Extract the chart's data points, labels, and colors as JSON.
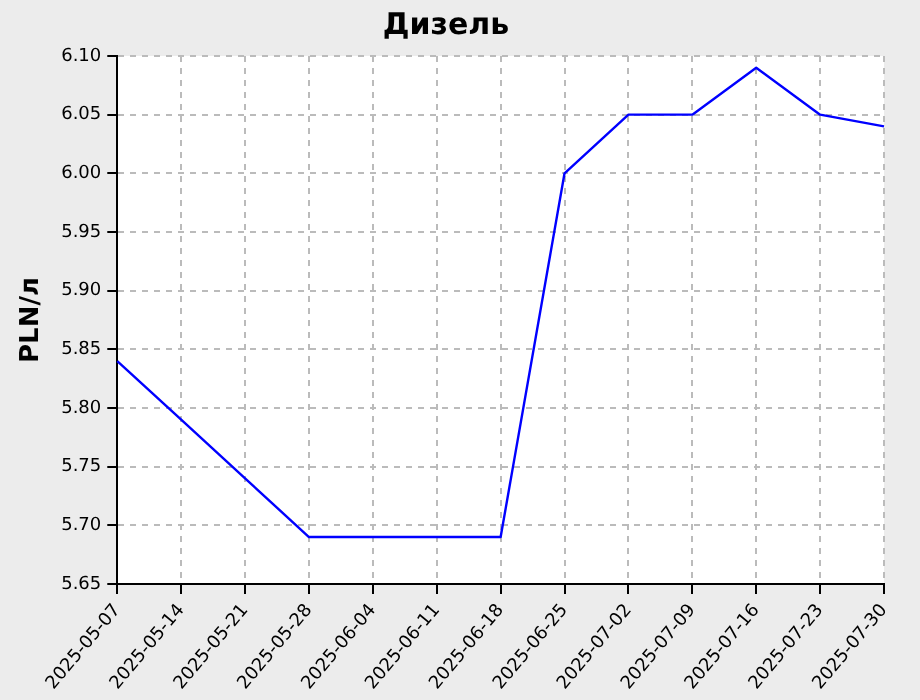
{
  "chart_data": {
    "type": "line",
    "title": "Дизель",
    "ylabel": "PLN/л",
    "categories": [
      "2025-05-07",
      "2025-05-14",
      "2025-05-21",
      "2025-05-28",
      "2025-06-04",
      "2025-06-11",
      "2025-06-18",
      "2025-06-25",
      "2025-07-02",
      "2025-07-09",
      "2025-07-16",
      "2025-07-23",
      "2025-07-30"
    ],
    "series": [
      {
        "color": "#0000ff",
        "values": [
          5.84,
          5.79,
          5.74,
          5.69,
          5.69,
          5.69,
          5.69,
          6.0,
          6.05,
          6.05,
          6.09,
          6.05,
          6.04
        ]
      }
    ],
    "ylim": [
      5.65,
      6.1
    ],
    "yticks": [
      {
        "value": 5.65,
        "label": "5.65"
      },
      {
        "value": 5.7,
        "label": "5.70"
      },
      {
        "value": 5.75,
        "label": "5.75"
      },
      {
        "value": 5.8,
        "label": "5.80"
      },
      {
        "value": 5.85,
        "label": "5.85"
      },
      {
        "value": 5.9,
        "label": "5.90"
      },
      {
        "value": 5.95,
        "label": "5.95"
      },
      {
        "value": 6.0,
        "label": "6.00"
      },
      {
        "value": 6.05,
        "label": "6.05"
      },
      {
        "value": 6.1,
        "label": "6.10"
      }
    ],
    "grid": true,
    "legend": false,
    "marker": "none",
    "line_style": "solid"
  }
}
